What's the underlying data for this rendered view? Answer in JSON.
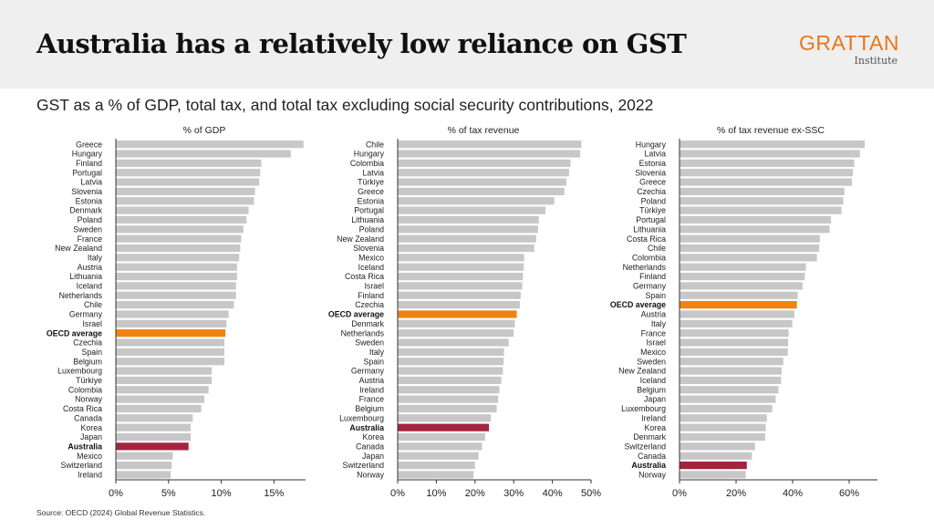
{
  "title": "Australia has a relatively low reliance on GST",
  "logo": {
    "name": "GRATTAN",
    "sub": "Institute"
  },
  "subtitle": "GST as a % of GDP, total tax, and total tax excluding social security contributions, 2022",
  "source": "Source: OECD (2024) Global Revenue Statistics.",
  "colors": {
    "bar": "#c7c7c7",
    "oecd": "#f0820f",
    "australia": "#a3243f",
    "axis": "#333333"
  },
  "chart_data": [
    {
      "type": "bar",
      "orientation": "horizontal",
      "title": "% of GDP",
      "xlim": [
        0,
        18
      ],
      "ticks": [
        0,
        5,
        10,
        15
      ],
      "tick_labels": [
        "0%",
        "5%",
        "10%",
        "15%"
      ],
      "categories": [
        "Greece",
        "Hungary",
        "Finland",
        "Portugal",
        "Latvia",
        "Slovenia",
        "Estonia",
        "Denmark",
        "Poland",
        "Sweden",
        "France",
        "New Zealand",
        "Italy",
        "Austria",
        "Lithuania",
        "Iceland",
        "Netherlands",
        "Chile",
        "Germany",
        "Israel",
        "OECD average",
        "Czechia",
        "Spain",
        "Belgium",
        "Luxembourg",
        "Türkiye",
        "Colombia",
        "Norway",
        "Costa Rica",
        "Canada",
        "Korea",
        "Japan",
        "Australia",
        "Mexico",
        "Switzerland",
        "Ireland"
      ],
      "values": [
        17.8,
        16.6,
        13.8,
        13.7,
        13.6,
        13.2,
        13.1,
        12.6,
        12.4,
        12.1,
        11.9,
        11.8,
        11.7,
        11.5,
        11.5,
        11.4,
        11.4,
        11.2,
        10.7,
        10.5,
        10.4,
        10.3,
        10.3,
        10.3,
        9.1,
        9.1,
        8.8,
        8.4,
        8.1,
        7.3,
        7.1,
        7.1,
        6.9,
        5.4,
        5.3,
        5.2
      ]
    },
    {
      "type": "bar",
      "orientation": "horizontal",
      "title": "% of tax revenue",
      "xlim": [
        0,
        50
      ],
      "ticks": [
        0,
        10,
        20,
        30,
        40,
        50
      ],
      "tick_labels": [
        "0%",
        "10%",
        "20%",
        "30%",
        "40%",
        "50%"
      ],
      "categories": [
        "Chile",
        "Hungary",
        "Colombia",
        "Latvia",
        "Türkiye",
        "Greece",
        "Estonia",
        "Portugal",
        "Lithuania",
        "Poland",
        "New Zealand",
        "Slovenia",
        "Mexico",
        "Iceland",
        "Costa Rica",
        "Israel",
        "Finland",
        "Czechia",
        "OECD average",
        "Denmark",
        "Netherlands",
        "Sweden",
        "Italy",
        "Spain",
        "Germany",
        "Austria",
        "Ireland",
        "France",
        "Belgium",
        "Luxembourg",
        "Australia",
        "Korea",
        "Canada",
        "Japan",
        "Switzerland",
        "Norway"
      ],
      "values": [
        47.5,
        47.2,
        44.7,
        44.3,
        43.6,
        43.1,
        40.5,
        38.2,
        36.5,
        36.3,
        35.8,
        35.3,
        32.7,
        32.6,
        32.4,
        32.2,
        31.8,
        31.6,
        30.8,
        30.3,
        30.0,
        28.7,
        27.5,
        27.4,
        27.2,
        26.8,
        26.3,
        26.0,
        25.6,
        24.1,
        23.6,
        22.6,
        21.8,
        20.9,
        20.0,
        19.6
      ]
    },
    {
      "type": "bar",
      "orientation": "horizontal",
      "title": "% of tax revenue ex-SSC",
      "xlim": [
        0,
        70
      ],
      "ticks": [
        0,
        20,
        40,
        60
      ],
      "tick_labels": [
        "0%",
        "20%",
        "40%",
        "60%"
      ],
      "categories": [
        "Hungary",
        "Latvia",
        "Estonia",
        "Slovenia",
        "Greece",
        "Czechia",
        "Poland",
        "Türkiye",
        "Portugal",
        "Lithuania",
        "Costa Rica",
        "Chile",
        "Colombia",
        "Netherlands",
        "Finland",
        "Germany",
        "Spain",
        "OECD average",
        "Austria",
        "Italy",
        "France",
        "Israel",
        "Mexico",
        "Sweden",
        "New Zealand",
        "Iceland",
        "Belgium",
        "Japan",
        "Luxembourg",
        "Ireland",
        "Korea",
        "Denmark",
        "Switzerland",
        "Canada",
        "Australia",
        "Norway"
      ],
      "values": [
        65.5,
        63.8,
        61.8,
        61.3,
        61.0,
        58.3,
        57.9,
        57.3,
        53.6,
        53.1,
        49.6,
        49.4,
        48.6,
        44.7,
        44.3,
        43.5,
        41.8,
        41.5,
        40.6,
        39.9,
        38.6,
        38.4,
        38.3,
        36.7,
        36.1,
        35.9,
        35.0,
        34.0,
        32.8,
        30.9,
        30.5,
        30.3,
        26.7,
        25.6,
        23.8,
        23.4
      ]
    }
  ]
}
